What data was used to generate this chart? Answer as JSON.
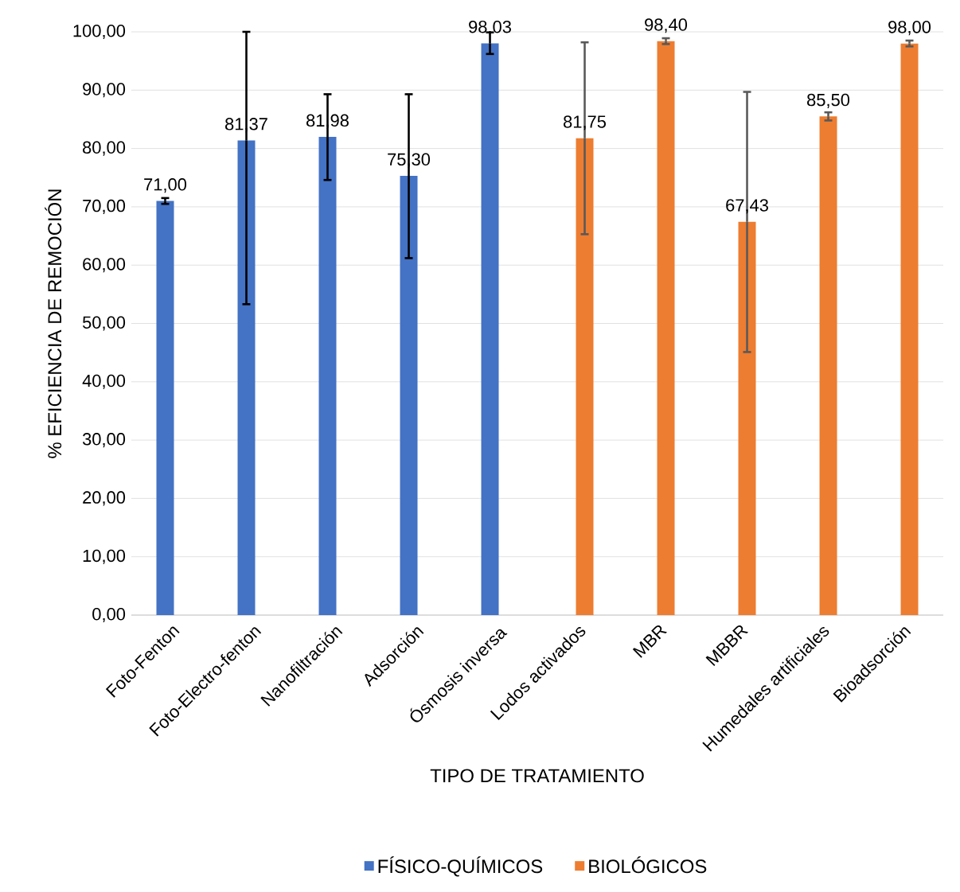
{
  "chart_data": {
    "type": "bar",
    "xlabel": "TIPO DE TRATAMIENTO",
    "ylabel": "% EFICIENCIA DE REMOCIÓN",
    "categories": [
      "Foto-Fenton",
      "Foto-Electro-fenton",
      "Nanofiltración",
      "Adsorción",
      "Ósmosis inversa",
      "Lodos activados",
      "MBR",
      "MBBR",
      "Humedales artificiales",
      "Bioadsorción"
    ],
    "series": [
      {
        "name": "FÍSICO-QUÍMICOS",
        "color": "#4472c4",
        "values": [
          71.0,
          81.37,
          81.98,
          75.3,
          98.03,
          null,
          null,
          null,
          null,
          null
        ],
        "value_labels": [
          "71,00",
          "81,37",
          "81,98",
          "75,30",
          "98,03",
          null,
          null,
          null,
          null,
          null
        ],
        "errors": [
          [
            70.5,
            71.5
          ],
          [
            53.3,
            100
          ],
          [
            74.6,
            89.3
          ],
          [
            61.2,
            89.3
          ],
          [
            96.2,
            99.9
          ],
          null,
          null,
          null,
          null,
          null
        ]
      },
      {
        "name": "BIOLÓGICOS",
        "color": "#ed7d31",
        "values": [
          null,
          null,
          null,
          null,
          null,
          81.75,
          98.4,
          67.43,
          85.5,
          98.0
        ],
        "value_labels": [
          null,
          null,
          null,
          null,
          null,
          "81,75",
          "98,40",
          "67,43",
          "85,50",
          "98,00"
        ],
        "errors": [
          null,
          null,
          null,
          null,
          null,
          [
            65.3,
            98.2
          ],
          [
            97.9,
            98.9
          ],
          [
            45.1,
            89.7
          ],
          [
            84.8,
            86.2
          ],
          [
            97.5,
            98.5
          ]
        ]
      }
    ],
    "ylim": [
      0,
      100
    ],
    "yticks": [
      {
        "value": 0,
        "label": "0,00"
      },
      {
        "value": 10,
        "label": "10,00"
      },
      {
        "value": 20,
        "label": "20,00"
      },
      {
        "value": 30,
        "label": "30,00"
      },
      {
        "value": 40,
        "label": "40,00"
      },
      {
        "value": 50,
        "label": "50,00"
      },
      {
        "value": 60,
        "label": "60,00"
      },
      {
        "value": 70,
        "label": "70,00"
      },
      {
        "value": 80,
        "label": "80,00"
      },
      {
        "value": 90,
        "label": "90,00"
      },
      {
        "value": 100,
        "label": "100,00"
      }
    ],
    "grid": "y",
    "legend": "bottom"
  }
}
